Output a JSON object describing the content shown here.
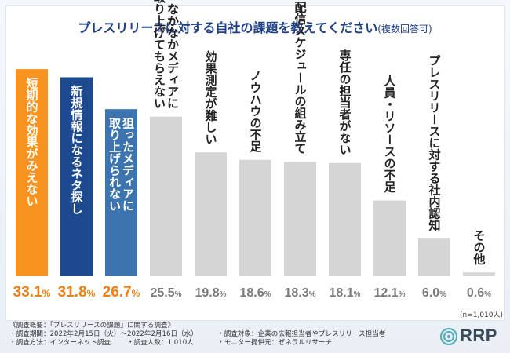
{
  "title": {
    "main": "プレスリリースに対する自社の課題を教えてください",
    "sub": "(複数回答可)"
  },
  "colors": {
    "orange": "#f7931e",
    "navy": "#1d4a8f",
    "blue": "#3c74b0",
    "gray": "#d5d5d5",
    "pct_highlight": "#f07f12",
    "pct_other": "#7a7a7a"
  },
  "chart_data": {
    "type": "bar",
    "title": "プレスリリースに対する自社の課題を教えてください(複数回答可)",
    "xlabel": "",
    "ylabel": "",
    "ylim": [
      0,
      35
    ],
    "categories": [
      "短期的な効果がみえない",
      "新規情報になるネタ探し",
      "狙ったメディアに取り上げられない",
      "なかなかメディアに取り上げてもらえない",
      "効果測定が難しい",
      "ノウハウの不足",
      "配信スケジュールの組み立て",
      "専任の担当者がない",
      "人員・リソースの不足",
      "プレスリリースに対する社内認知",
      "その他"
    ],
    "label_lines": [
      [
        "短期的な効果がみえない"
      ],
      [
        "新規情報になるネタ探し"
      ],
      [
        "狙ったメディアに",
        "取り上げられない"
      ],
      [
        "なかなかメディアに",
        "取り上げてもらえない"
      ],
      [
        "効果測定が難しい"
      ],
      [
        "ノウハウの不足"
      ],
      [
        "配信スケジュールの組み立て"
      ],
      [
        "専任の担当者がない"
      ],
      [
        "人員・リソースの不足"
      ],
      [
        "プレスリリースに対する社内認知"
      ],
      [
        "その他"
      ]
    ],
    "values": [
      33.1,
      31.8,
      26.7,
      25.5,
      19.8,
      18.6,
      18.3,
      18.1,
      12.1,
      6.0,
      0.6
    ],
    "value_labels": [
      "33.1%",
      "31.8%",
      "26.7%",
      "25.5%",
      "19.8%",
      "18.6%",
      "18.3%",
      "18.1%",
      "12.1%",
      "6.0%",
      "0.6%"
    ],
    "highlight": [
      0,
      1,
      2
    ]
  },
  "notes": {
    "summary": "《調査概要：「プレスリリースの課題」に関する調査》",
    "period": "・調査期間：2022年2月15日（火）〜2022年2月16日（水）",
    "method": "・調査方法：インターネット調査",
    "respondents": "・調査人数：1,010人",
    "target": "・調査対象：企業の広報担当者やプレスリリース担当者",
    "provider": "・モニター提供元：ゼネラルリサーチ",
    "sample": "(n=1,010人)"
  },
  "logo": {
    "text": "RRP"
  }
}
